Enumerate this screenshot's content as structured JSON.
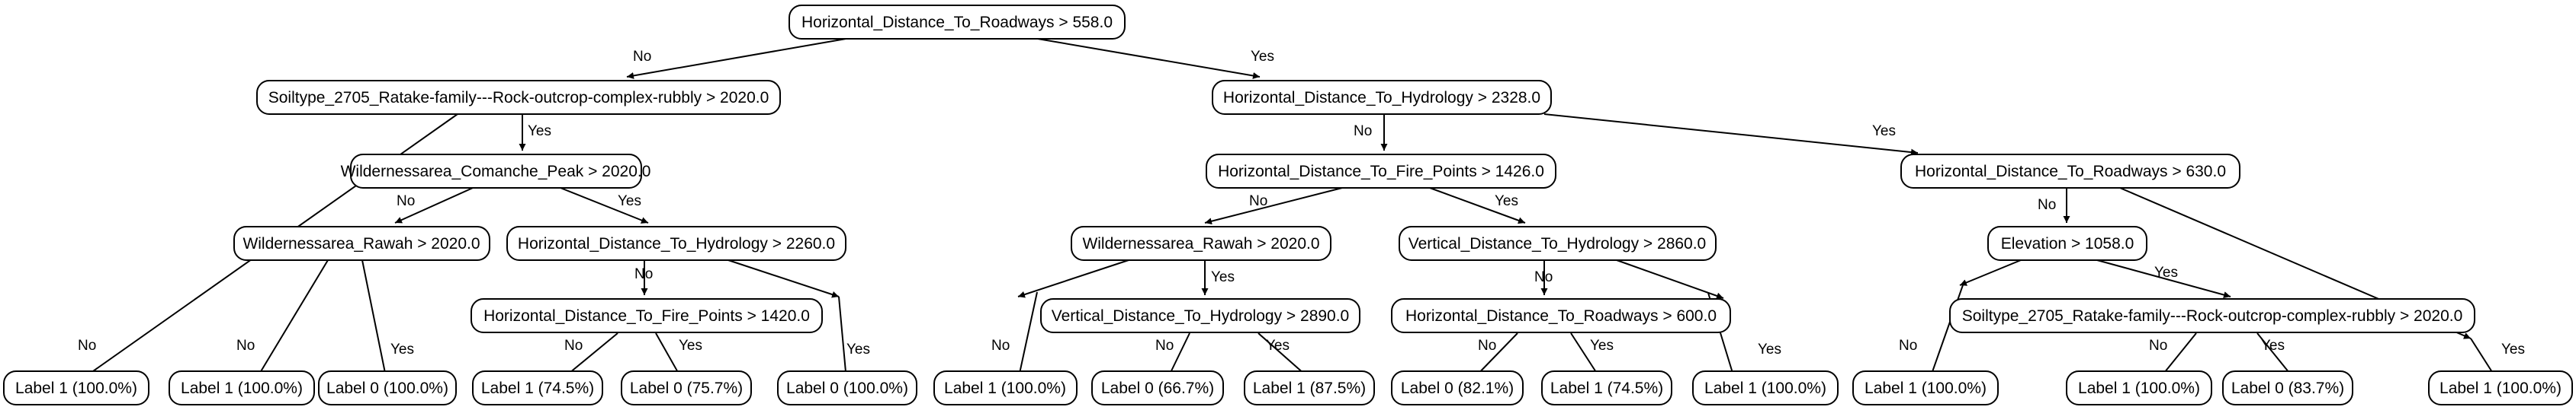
{
  "tree": {
    "n0": "Horizontal_Distance_To_Roadways > 558.0",
    "n1": "Soiltype_2705_Ratake-family---Rock-outcrop-complex-rubbly > 2020.0",
    "n2": "Horizontal_Distance_To_Hydrology > 2328.0",
    "n3": "Wildernessarea_Comanche_Peak > 2020.0",
    "n4": "Wildernessarea_Rawah > 2020.0",
    "n5": "Horizontal_Distance_To_Hydrology > 2260.0",
    "n6": "Horizontal_Distance_To_Fire_Points > 1420.0",
    "n7": "Horizontal_Distance_To_Fire_Points > 1426.0",
    "n8": "Wildernessarea_Rawah > 2020.0",
    "n9": "Vertical_Distance_To_Hydrology > 2890.0",
    "n10": "Vertical_Distance_To_Hydrology > 2860.0",
    "n11": "Horizontal_Distance_To_Roadways > 600.0",
    "n12": "Horizontal_Distance_To_Roadways > 630.0",
    "n13": "Elevation > 1058.0",
    "n14": "Soiltype_2705_Ratake-family---Rock-outcrop-complex-rubbly > 2020.0",
    "l0": "Label 1 (100.0%)",
    "l1": "Label 1 (100.0%)",
    "l2": "Label 0 (100.0%)",
    "l3": "Label 1 (74.5%)",
    "l4": "Label 0 (75.7%)",
    "l5": "Label 0 (100.0%)",
    "l6": "Label 1 (100.0%)",
    "l7": "Label 0 (66.7%)",
    "l8": "Label 1 (87.5%)",
    "l9": "Label 0 (82.1%)",
    "l10": "Label 1 (74.5%)",
    "l11": "Label 1 (100.0%)",
    "l12": "Label 1 (100.0%)",
    "l13": "Label 1 (100.0%)",
    "l14": "Label 0 (83.7%)",
    "l15": "Label 1 (100.0%)"
  },
  "edge_labels": {
    "no": "No",
    "yes": "Yes"
  }
}
